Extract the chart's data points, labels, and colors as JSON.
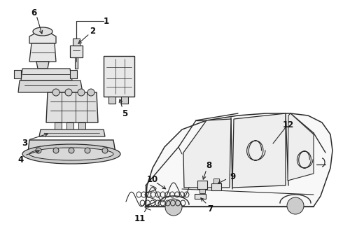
{
  "bg_color": "#f5f5f5",
  "line_color": "#2a2a2a",
  "label_color": "#111111",
  "fig_width": 4.9,
  "fig_height": 3.6,
  "dpi": 100
}
